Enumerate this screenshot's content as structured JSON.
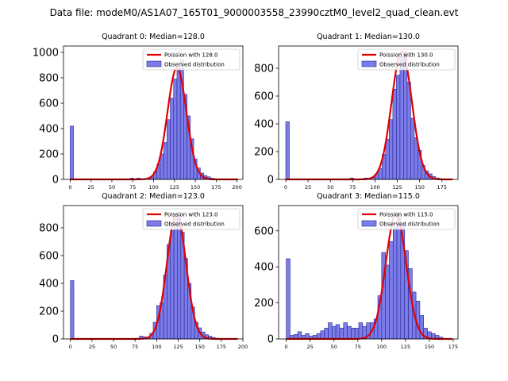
{
  "figure": {
    "suptitle": "Data file: modeM0/AS1A07_165T01_9000003558_23990cztM0_level2_quad_clean.evt"
  },
  "colors": {
    "bar_fill": "#7b7bea",
    "bar_edge": "#26268f",
    "poisson_line": "#e00000",
    "axes": "#000000"
  },
  "chart_data": [
    {
      "type": "bar",
      "title": "Quadrant 0: Median=128.0",
      "xlim": [
        -8,
        207
      ],
      "ylim": [
        0,
        1050
      ],
      "xticks": [
        0,
        25,
        50,
        75,
        100,
        125,
        150,
        175,
        200
      ],
      "yticks": [
        0,
        200,
        400,
        600,
        800,
        1000
      ],
      "bin_width": 4,
      "legend": [
        "Poission with 128.0",
        "Observed distribution"
      ],
      "legend_loc": "upper right",
      "poisson_mean": 128,
      "poisson_peak": 880,
      "x_start": 72,
      "bars": [
        {
          "x": 0,
          "y": 420
        },
        {
          "x": 72,
          "y": 10
        },
        {
          "x": 76,
          "y": 3
        },
        {
          "x": 80,
          "y": 10
        },
        {
          "x": 84,
          "y": 3
        },
        {
          "x": 88,
          "y": 5
        },
        {
          "x": 92,
          "y": 5
        },
        {
          "x": 96,
          "y": 20
        },
        {
          "x": 100,
          "y": 60
        },
        {
          "x": 104,
          "y": 120
        },
        {
          "x": 108,
          "y": 200
        },
        {
          "x": 112,
          "y": 290
        },
        {
          "x": 116,
          "y": 470
        },
        {
          "x": 120,
          "y": 640
        },
        {
          "x": 124,
          "y": 790
        },
        {
          "x": 128,
          "y": 880
        },
        {
          "x": 132,
          "y": 940
        },
        {
          "x": 136,
          "y": 670
        },
        {
          "x": 140,
          "y": 500
        },
        {
          "x": 144,
          "y": 320
        },
        {
          "x": 148,
          "y": 160
        },
        {
          "x": 152,
          "y": 90
        },
        {
          "x": 156,
          "y": 50
        },
        {
          "x": 160,
          "y": 30
        },
        {
          "x": 164,
          "y": 20
        },
        {
          "x": 168,
          "y": 10
        },
        {
          "x": 172,
          "y": 5
        },
        {
          "x": 176,
          "y": 3
        },
        {
          "x": 180,
          "y": 2
        }
      ]
    },
    {
      "type": "bar",
      "title": "Quadrant 1: Median=130.0",
      "xlim": [
        -8,
        193
      ],
      "ylim": [
        0,
        960
      ],
      "xticks": [
        0,
        25,
        50,
        75,
        100,
        125,
        150,
        175
      ],
      "yticks": [
        0,
        200,
        400,
        600,
        800
      ],
      "bin_width": 4,
      "legend": [
        "Poission with 130.0",
        "Observed distribution"
      ],
      "legend_loc": "upper right",
      "poisson_mean": 130,
      "poisson_peak": 920,
      "x_start": 86,
      "bars": [
        {
          "x": 0,
          "y": 415
        },
        {
          "x": 72,
          "y": 10
        },
        {
          "x": 76,
          "y": 3
        },
        {
          "x": 80,
          "y": 3
        },
        {
          "x": 84,
          "y": 5
        },
        {
          "x": 88,
          "y": 10
        },
        {
          "x": 92,
          "y": 8
        },
        {
          "x": 96,
          "y": 15
        },
        {
          "x": 100,
          "y": 40
        },
        {
          "x": 104,
          "y": 80
        },
        {
          "x": 108,
          "y": 180
        },
        {
          "x": 112,
          "y": 290
        },
        {
          "x": 116,
          "y": 430
        },
        {
          "x": 120,
          "y": 650
        },
        {
          "x": 124,
          "y": 750
        },
        {
          "x": 128,
          "y": 880
        },
        {
          "x": 132,
          "y": 920
        },
        {
          "x": 136,
          "y": 700
        },
        {
          "x": 140,
          "y": 440
        },
        {
          "x": 144,
          "y": 300
        },
        {
          "x": 148,
          "y": 210
        },
        {
          "x": 152,
          "y": 100
        },
        {
          "x": 156,
          "y": 60
        },
        {
          "x": 160,
          "y": 40
        },
        {
          "x": 164,
          "y": 20
        },
        {
          "x": 168,
          "y": 10
        },
        {
          "x": 172,
          "y": 5
        },
        {
          "x": 176,
          "y": 3
        },
        {
          "x": 180,
          "y": 2
        }
      ]
    },
    {
      "type": "bar",
      "title": "Quadrant 2: Median=123.0",
      "xlim": [
        -8,
        200
      ],
      "ylim": [
        0,
        960
      ],
      "xticks": [
        0,
        25,
        50,
        75,
        100,
        125,
        150,
        175,
        200
      ],
      "yticks": [
        0,
        200,
        400,
        600,
        800
      ],
      "bin_width": 4,
      "legend": [
        "Poission with 123.0",
        "Observed distribution"
      ],
      "legend_loc": "upper right",
      "poisson_mean": 123,
      "poisson_peak": 900,
      "x_start": 72,
      "bars": [
        {
          "x": 0,
          "y": 420
        },
        {
          "x": 76,
          "y": 5
        },
        {
          "x": 80,
          "y": 20
        },
        {
          "x": 84,
          "y": 15
        },
        {
          "x": 88,
          "y": 10
        },
        {
          "x": 92,
          "y": 40
        },
        {
          "x": 96,
          "y": 120
        },
        {
          "x": 100,
          "y": 240
        },
        {
          "x": 104,
          "y": 260
        },
        {
          "x": 108,
          "y": 460
        },
        {
          "x": 112,
          "y": 680
        },
        {
          "x": 116,
          "y": 780
        },
        {
          "x": 120,
          "y": 870
        },
        {
          "x": 124,
          "y": 890
        },
        {
          "x": 128,
          "y": 770
        },
        {
          "x": 132,
          "y": 580
        },
        {
          "x": 136,
          "y": 400
        },
        {
          "x": 140,
          "y": 230
        },
        {
          "x": 144,
          "y": 120
        },
        {
          "x": 148,
          "y": 80
        },
        {
          "x": 152,
          "y": 50
        },
        {
          "x": 156,
          "y": 30
        },
        {
          "x": 160,
          "y": 20
        },
        {
          "x": 164,
          "y": 10
        },
        {
          "x": 168,
          "y": 5
        },
        {
          "x": 172,
          "y": 3
        }
      ]
    },
    {
      "type": "bar",
      "title": "Quadrant 3: Median=115.0",
      "xlim": [
        -8,
        180
      ],
      "ylim": [
        0,
        740
      ],
      "xticks": [
        0,
        25,
        50,
        75,
        100,
        125,
        150,
        175
      ],
      "yticks": [
        0,
        200,
        400,
        600
      ],
      "bin_width": 4,
      "legend": [
        "Poission with 115.0",
        "Observed distribution"
      ],
      "legend_loc": "upper right",
      "poisson_mean": 115,
      "poisson_peak": 690,
      "x_start": 75,
      "bars": [
        {
          "x": 0,
          "y": 445
        },
        {
          "x": 4,
          "y": 20
        },
        {
          "x": 8,
          "y": 25
        },
        {
          "x": 12,
          "y": 40
        },
        {
          "x": 16,
          "y": 20
        },
        {
          "x": 20,
          "y": 30
        },
        {
          "x": 24,
          "y": 15
        },
        {
          "x": 28,
          "y": 20
        },
        {
          "x": 32,
          "y": 30
        },
        {
          "x": 36,
          "y": 45
        },
        {
          "x": 40,
          "y": 60
        },
        {
          "x": 44,
          "y": 90
        },
        {
          "x": 48,
          "y": 70
        },
        {
          "x": 52,
          "y": 80
        },
        {
          "x": 56,
          "y": 60
        },
        {
          "x": 60,
          "y": 90
        },
        {
          "x": 64,
          "y": 70
        },
        {
          "x": 68,
          "y": 60
        },
        {
          "x": 72,
          "y": 60
        },
        {
          "x": 76,
          "y": 90
        },
        {
          "x": 80,
          "y": 70
        },
        {
          "x": 84,
          "y": 90
        },
        {
          "x": 88,
          "y": 90
        },
        {
          "x": 92,
          "y": 110
        },
        {
          "x": 96,
          "y": 240
        },
        {
          "x": 100,
          "y": 480
        },
        {
          "x": 104,
          "y": 410
        },
        {
          "x": 108,
          "y": 540
        },
        {
          "x": 112,
          "y": 620
        },
        {
          "x": 116,
          "y": 700
        },
        {
          "x": 120,
          "y": 640
        },
        {
          "x": 124,
          "y": 490
        },
        {
          "x": 128,
          "y": 390
        },
        {
          "x": 132,
          "y": 260
        },
        {
          "x": 136,
          "y": 210
        },
        {
          "x": 140,
          "y": 130
        },
        {
          "x": 144,
          "y": 60
        },
        {
          "x": 148,
          "y": 40
        },
        {
          "x": 152,
          "y": 30
        },
        {
          "x": 156,
          "y": 20
        },
        {
          "x": 160,
          "y": 10
        },
        {
          "x": 164,
          "y": 3
        }
      ]
    }
  ]
}
